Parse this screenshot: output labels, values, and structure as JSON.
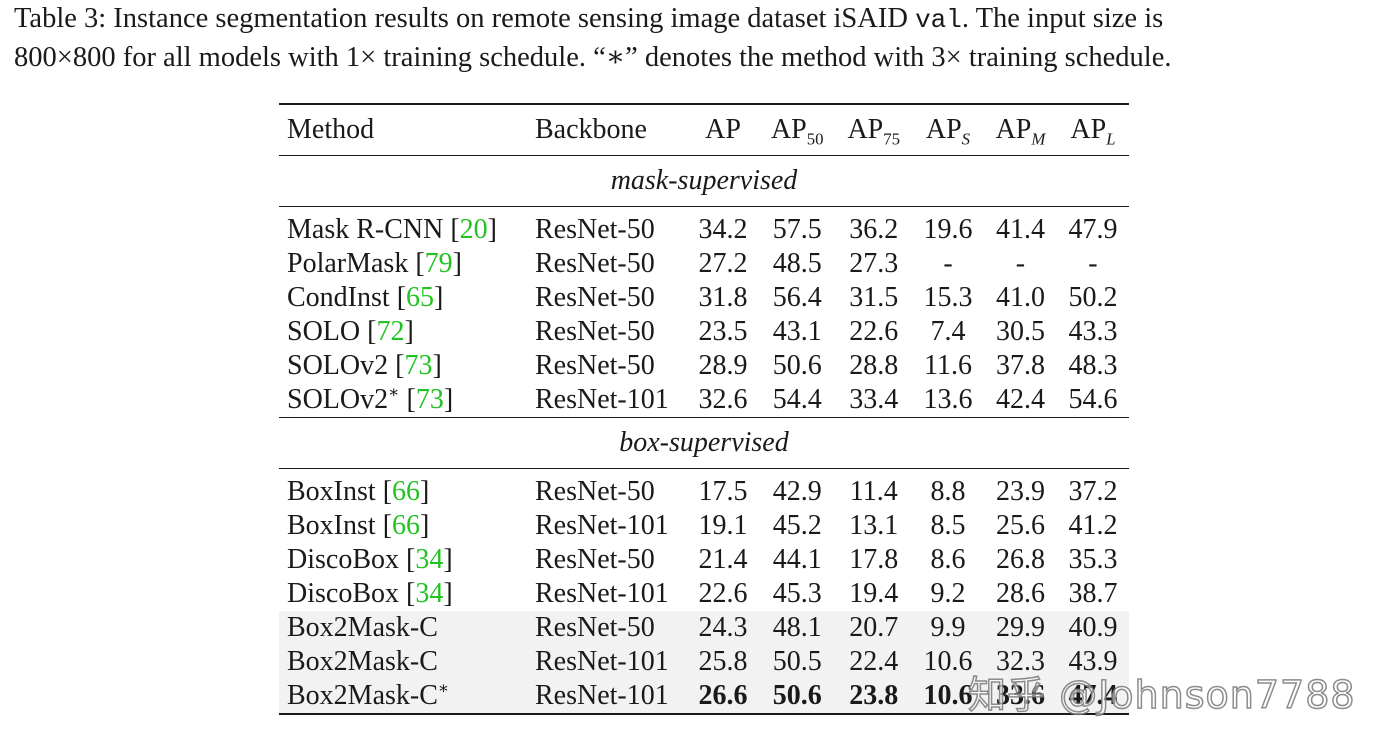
{
  "caption": {
    "line1_prefix": "Table 3: Instance segmentation results on remote sensing image dataset iSAID ",
    "line1_code": "val",
    "line1_suffix": ". The input size is",
    "line2": "800×800 for all models with 1× training schedule. “∗” denotes the method with 3× training schedule."
  },
  "table": {
    "headers": {
      "method": "Method",
      "backbone": "Backbone",
      "ap": "AP",
      "ap50_base": "AP",
      "ap50_sub": "50",
      "ap75_base": "AP",
      "ap75_sub": "75",
      "aps_base": "AP",
      "aps_sub": "S",
      "apm_base": "AP",
      "apm_sub": "M",
      "apl_base": "AP",
      "apl_sub": "L"
    },
    "sections": {
      "mask": "mask-supervised",
      "box": "box-supervised"
    },
    "mask_rows": [
      {
        "name": "Mask R-CNN ",
        "cite": "20",
        "backbone": "ResNet-50",
        "ap": "34.2",
        "ap50": "57.5",
        "ap75": "36.2",
        "aps": "19.6",
        "apm": "41.4",
        "apl": "47.9"
      },
      {
        "name": "PolarMask ",
        "cite": "79",
        "backbone": "ResNet-50",
        "ap": "27.2",
        "ap50": "48.5",
        "ap75": "27.3",
        "aps": "-",
        "apm": "-",
        "apl": "-"
      },
      {
        "name": "CondInst ",
        "cite": "65",
        "backbone": "ResNet-50",
        "ap": "31.8",
        "ap50": "56.4",
        "ap75": "31.5",
        "aps": "15.3",
        "apm": "41.0",
        "apl": "50.2"
      },
      {
        "name": "SOLO ",
        "cite": "72",
        "backbone": "ResNet-50",
        "ap": "23.5",
        "ap50": "43.1",
        "ap75": "22.6",
        "aps": "7.4",
        "apm": "30.5",
        "apl": "43.3"
      },
      {
        "name": "SOLOv2 ",
        "cite": "73",
        "backbone": "ResNet-50",
        "ap": "28.9",
        "ap50": "50.6",
        "ap75": "28.8",
        "aps": "11.6",
        "apm": "37.8",
        "apl": "48.3"
      },
      {
        "name": "SOLOv2",
        "star": "∗",
        "name_tail": " ",
        "cite": "73",
        "backbone": "ResNet-101",
        "ap": "32.6",
        "ap50": "54.4",
        "ap75": "33.4",
        "aps": "13.6",
        "apm": "42.4",
        "apl": "54.6"
      }
    ],
    "box_rows": [
      {
        "name": "BoxInst ",
        "cite": "66",
        "backbone": "ResNet-50",
        "ap": "17.5",
        "ap50": "42.9",
        "ap75": "11.4",
        "aps": "8.8",
        "apm": "23.9",
        "apl": "37.2"
      },
      {
        "name": "BoxInst ",
        "cite": "66",
        "backbone": "ResNet-101",
        "ap": "19.1",
        "ap50": "45.2",
        "ap75": "13.1",
        "aps": "8.5",
        "apm": "25.6",
        "apl": "41.2"
      },
      {
        "name": "DiscoBox ",
        "cite": "34",
        "backbone": "ResNet-50",
        "ap": "21.4",
        "ap50": "44.1",
        "ap75": "17.8",
        "aps": "8.6",
        "apm": "26.8",
        "apl": "35.3"
      },
      {
        "name": "DiscoBox ",
        "cite": "34",
        "backbone": "ResNet-101",
        "ap": "22.6",
        "ap50": "45.3",
        "ap75": "19.4",
        "aps": "9.2",
        "apm": "28.6",
        "apl": "38.7"
      },
      {
        "name": "Box2Mask-C",
        "backbone": "ResNet-50",
        "ap": "24.3",
        "ap50": "48.1",
        "ap75": "20.7",
        "aps": "9.9",
        "apm": "29.9",
        "apl": "40.9"
      },
      {
        "name": "Box2Mask-C",
        "backbone": "ResNet-101",
        "ap": "25.8",
        "ap50": "50.5",
        "ap75": "22.4",
        "aps": "10.6",
        "apm": "32.3",
        "apl": "43.9"
      },
      {
        "name": "Box2Mask-C",
        "star": "∗",
        "backbone": "ResNet-101",
        "ap": "26.6",
        "ap50": "50.6",
        "ap75": "23.8",
        "aps": "10.6",
        "apm": "33.6",
        "apl": "47.4"
      }
    ]
  },
  "watermark": "知乎 @Johnson7788",
  "colors": {
    "citation": "#22c322",
    "highlight_row": "#f2f2f2",
    "text": "#1a1a1a"
  }
}
